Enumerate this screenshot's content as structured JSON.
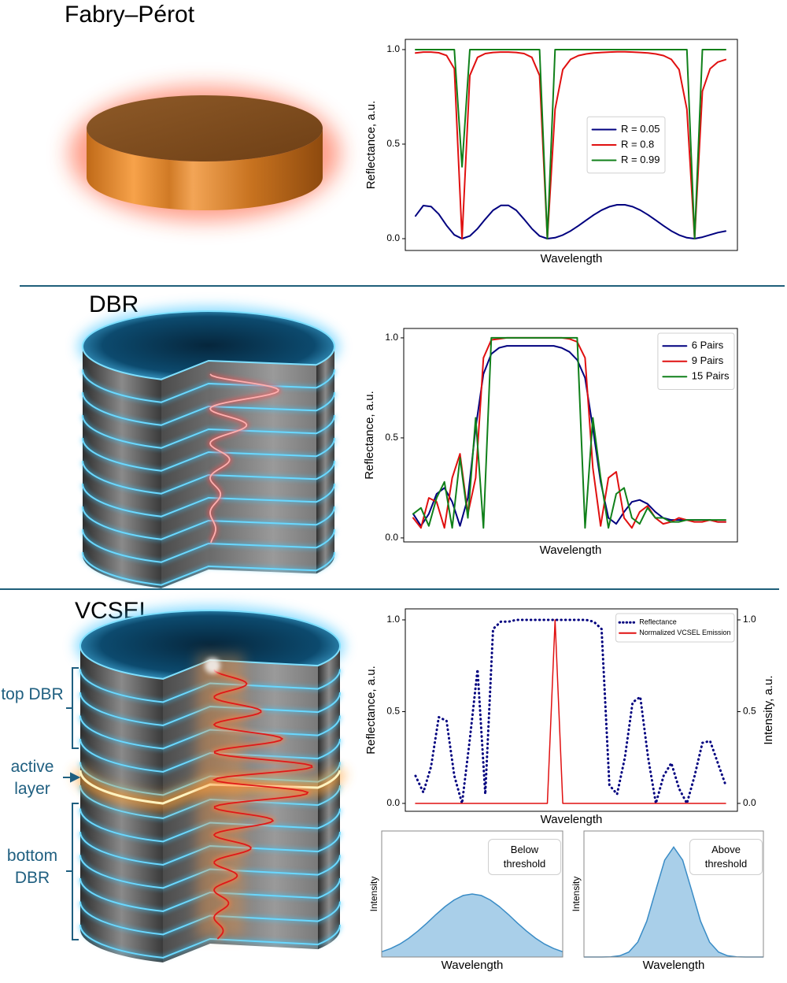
{
  "sections": {
    "fabry_perot": "Fabry–Pérot",
    "dbr": "DBR",
    "vcsel": "VCSEL"
  },
  "labels": {
    "top_dbr": "top DBR",
    "active_layer": "active layer",
    "bottom_dbr": "bottom DBR"
  },
  "chart_data": [
    {
      "type": "line",
      "xlabel": "Wavelength",
      "ylabel": "Reflectance, a.u.",
      "ylim": [
        -0.0625,
        1.054
      ],
      "yticks": [
        {
          "value": 0,
          "label": "0.0"
        },
        {
          "value": 0.5,
          "label": "0.5"
        },
        {
          "value": 1,
          "label": "1.0"
        }
      ],
      "legend": "center right",
      "categories": [
        null,
        null,
        null,
        null,
        null,
        null,
        null,
        null,
        null,
        null,
        null,
        null,
        null,
        null,
        null,
        null,
        null,
        null,
        null,
        null,
        null,
        null,
        null,
        null,
        null,
        null,
        null,
        null,
        null,
        null,
        null,
        null,
        null,
        null,
        null,
        null,
        null,
        null,
        null,
        null,
        null
      ],
      "series": [
        {
          "name": "R = 0.05",
          "color": "#00007f",
          "values": [
            0.12,
            0.175,
            0.17,
            0.13,
            0.07,
            0.02,
            0,
            0.014,
            0.053,
            0.103,
            0.15,
            0.176,
            0.176,
            0.15,
            0.103,
            0.053,
            0.014,
            0,
            0.005,
            0.019,
            0.041,
            0.068,
            0.097,
            0.126,
            0.151,
            0.169,
            0.179,
            0.179,
            0.169,
            0.151,
            0.126,
            0.097,
            0.068,
            0.041,
            0.019,
            0.005,
            0,
            0.008,
            0.02,
            0.032,
            0.04
          ]
        },
        {
          "name": "R = 0.8",
          "color": "#e01010",
          "values": [
            0.982,
            0.987,
            0.987,
            0.983,
            0.969,
            0.899,
            0,
            0.863,
            0.959,
            0.979,
            0.985,
            0.987,
            0.987,
            0.985,
            0.979,
            0.959,
            0.863,
            0,
            0.684,
            0.894,
            0.948,
            0.968,
            0.977,
            0.982,
            0.985,
            0.987,
            0.988,
            0.988,
            0.987,
            0.985,
            0.982,
            0.977,
            0.968,
            0.948,
            0.894,
            0.684,
            0,
            0.78,
            0.899,
            0.934,
            0.947
          ]
        },
        {
          "name": "R = 0.99",
          "color": "#10801a",
          "values": [
            1,
            1,
            1,
            1,
            1,
            1,
            0.38,
            1,
            1,
            1,
            1,
            1,
            1,
            1,
            1,
            1,
            1,
            0,
            1,
            1,
            1,
            1,
            1,
            1,
            1,
            1,
            1,
            1,
            1,
            1,
            1,
            1,
            1,
            1,
            1,
            1,
            0,
            1,
            1,
            1,
            1
          ]
        }
      ]
    },
    {
      "type": "line",
      "xlabel": "Wavelength",
      "ylabel": "Reflectance, a.u.",
      "ylim": [
        -0.02,
        1.047
      ],
      "yticks": [
        {
          "value": 0,
          "label": "0.0"
        },
        {
          "value": 0.5,
          "label": "0.5"
        },
        {
          "value": 1,
          "label": "1.0"
        }
      ],
      "legend": "upper right",
      "categories": [
        null,
        null,
        null,
        null,
        null,
        null,
        null,
        null,
        null,
        null,
        null,
        null,
        null,
        null,
        null,
        null,
        null,
        null,
        null,
        null,
        null,
        null,
        null,
        null,
        null,
        null,
        null,
        null,
        null,
        null,
        null,
        null,
        null,
        null,
        null,
        null,
        null,
        null,
        null,
        null,
        null
      ],
      "series": [
        {
          "name": "6 Pairs",
          "color": "#00007f",
          "values": [
            0.12,
            0.06,
            0.12,
            0.22,
            0.25,
            0.18,
            0.06,
            0.2,
            0.55,
            0.82,
            0.92,
            0.95,
            0.96,
            0.96,
            0.96,
            0.96,
            0.96,
            0.96,
            0.96,
            0.95,
            0.93,
            0.89,
            0.8,
            0.55,
            0.28,
            0.1,
            0.07,
            0.13,
            0.18,
            0.19,
            0.17,
            0.13,
            0.1,
            0.09,
            0.09,
            0.09,
            0.09,
            0.09,
            0.09,
            0.08,
            0.08
          ]
        },
        {
          "name": "9 Pairs",
          "color": "#e01010",
          "values": [
            0.1,
            0.05,
            0.2,
            0.18,
            0.05,
            0.3,
            0.42,
            0.12,
            0.3,
            0.9,
            0.99,
            0.995,
            1,
            1,
            1,
            1,
            1,
            1,
            1,
            1,
            0.995,
            0.98,
            0.9,
            0.35,
            0.06,
            0.3,
            0.33,
            0.1,
            0.05,
            0.13,
            0.16,
            0.1,
            0.07,
            0.08,
            0.1,
            0.09,
            0.08,
            0.08,
            0.09,
            0.08,
            0.08
          ]
        },
        {
          "name": "15 Pairs",
          "color": "#10801a",
          "values": [
            0.12,
            0.15,
            0.06,
            0.2,
            0.28,
            0.05,
            0.4,
            0.1,
            0.6,
            0.05,
            1,
            1,
            1,
            1,
            1,
            1,
            1,
            1,
            1,
            1,
            1,
            1,
            0.05,
            0.6,
            0.3,
            0.05,
            0.22,
            0.25,
            0.1,
            0.07,
            0.15,
            0.1,
            0.1,
            0.08,
            0.08,
            0.09,
            0.09,
            0.09,
            0.09,
            0.09,
            0.09
          ]
        }
      ]
    },
    {
      "type": "line",
      "xlabel": "Wavelength",
      "ylabel": "Reflectance, a.u.",
      "y2label": "Intensity, a.u.",
      "ylim": [
        -0.043,
        1.06
      ],
      "yticks": [
        {
          "value": 0,
          "label": "0.0"
        },
        {
          "value": 0.5,
          "label": "0.5"
        },
        {
          "value": 1,
          "label": "1.0"
        }
      ],
      "y2lim": [
        -0.043,
        1.06
      ],
      "y2ticks": [
        {
          "value": 0,
          "label": "0.0"
        },
        {
          "value": 0.5,
          "label": "0.5"
        },
        {
          "value": 1,
          "label": "1.0"
        }
      ],
      "legend": "upper right",
      "categories": [
        null,
        null,
        null,
        null,
        null,
        null,
        null,
        null,
        null,
        null,
        null,
        null,
        null,
        null,
        null,
        null,
        null,
        null,
        null,
        null,
        null,
        null,
        null,
        null,
        null,
        null,
        null,
        null,
        null,
        null,
        null,
        null,
        null,
        null,
        null,
        null,
        null,
        null,
        null,
        null,
        null
      ],
      "series": [
        {
          "name": "Reflectance",
          "color": "#00007f",
          "linestyle": "dotted",
          "values": [
            0.15,
            0.06,
            0.2,
            0.47,
            0.45,
            0.15,
            0,
            0.35,
            0.73,
            0.05,
            0.95,
            0.99,
            0.99,
            1,
            1,
            1,
            1,
            1,
            1,
            1,
            1,
            1,
            1,
            0.99,
            0.95,
            0.1,
            0.05,
            0.25,
            0.55,
            0.58,
            0.25,
            0,
            0.15,
            0.22,
            0.08,
            0,
            0.15,
            0.33,
            0.34,
            0.22,
            0.1
          ]
        },
        {
          "name": "Normalized VCSEL Emission",
          "color": "#e01010",
          "axis": "y2",
          "values": [
            0,
            0,
            0,
            0,
            0,
            0,
            0,
            0,
            0,
            0,
            0,
            0,
            0,
            0,
            0,
            0,
            0,
            0,
            1,
            0,
            0,
            0,
            0,
            0,
            0,
            0,
            0,
            0,
            0,
            0,
            0,
            0,
            0,
            0,
            0,
            0,
            0,
            0,
            0,
            0,
            0
          ]
        }
      ]
    },
    {
      "type": "area",
      "xlabel": "Wavelength",
      "ylabel": "Intensity",
      "annotation": "Below threshold",
      "ylim": [
        0,
        1.1
      ],
      "color": "#a9cfe9",
      "edgecolor": "#3a8cc6",
      "categories": [
        null,
        null,
        null,
        null,
        null,
        null,
        null,
        null,
        null,
        null,
        null,
        null,
        null,
        null,
        null,
        null,
        null,
        null,
        null,
        null,
        null
      ],
      "values": [
        0.046,
        0.074,
        0.113,
        0.164,
        0.226,
        0.296,
        0.371,
        0.44,
        0.498,
        0.537,
        0.55,
        0.537,
        0.498,
        0.44,
        0.371,
        0.296,
        0.226,
        0.164,
        0.113,
        0.074,
        0.046
      ]
    },
    {
      "type": "area",
      "xlabel": "Wavelength",
      "ylabel": "Intensity",
      "annotation": "Above threshold",
      "ylim": [
        0,
        1.1
      ],
      "color": "#a9cfe9",
      "edgecolor": "#3a8cc6",
      "categories": [
        null,
        null,
        null,
        null,
        null,
        null,
        null,
        null,
        null,
        null,
        null,
        null,
        null,
        null,
        null,
        null,
        null,
        null,
        null,
        null,
        null
      ],
      "values": [
        0,
        0,
        0,
        0.002,
        0.011,
        0.043,
        0.13,
        0.312,
        0.582,
        0.846,
        0.96,
        0.846,
        0.582,
        0.312,
        0.13,
        0.043,
        0.011,
        0.002,
        0,
        0,
        0
      ]
    }
  ]
}
